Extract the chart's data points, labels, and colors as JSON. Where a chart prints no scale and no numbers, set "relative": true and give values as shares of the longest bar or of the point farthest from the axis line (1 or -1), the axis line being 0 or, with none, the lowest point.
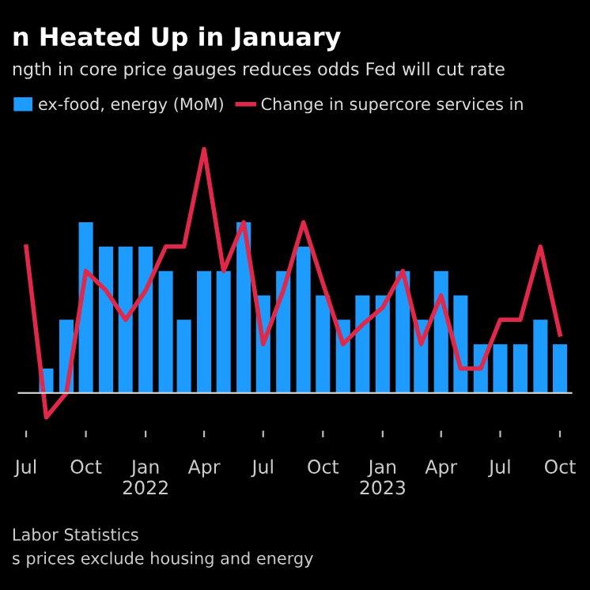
{
  "chart_data": {
    "type": "bar",
    "title": "n Heated Up in January",
    "subtitle": "ngth in core price gauges reduces odds Fed will cut rate",
    "relative": true,
    "legend": "top left",
    "grid": false,
    "x": [
      "2021-07-01",
      "2021-08-01",
      "2021-09-01",
      "2021-10-01",
      "2021-11-01",
      "2021-12-01",
      "2022-01-01",
      "2022-02-01",
      "2022-03-01",
      "2022-04-01",
      "2022-05-01",
      "2022-06-01",
      "2022-07-01",
      "2022-08-01",
      "2022-09-01",
      "2022-10-01",
      "2022-11-01",
      "2022-12-01",
      "2023-01-01",
      "2023-02-01",
      "2023-03-01",
      "2023-04-01",
      "2023-05-01",
      "2023-06-01",
      "2023-07-01",
      "2023-08-01",
      "2023-09-01",
      "2023-10-01"
    ],
    "xlim": [
      "2021-06-18",
      "2023-10-20"
    ],
    "xticks": [
      {
        "value": "2021-07-01",
        "label": "Jul"
      },
      {
        "value": "2021-10-01",
        "label": "Oct"
      },
      {
        "value": "2022-01-01",
        "label": "Jan\n2022"
      },
      {
        "value": "2022-04-01",
        "label": "Apr"
      },
      {
        "value": "2022-07-01",
        "label": "Jul"
      },
      {
        "value": "2022-10-01",
        "label": "Oct"
      },
      {
        "value": "2023-01-01",
        "label": "Jan\n2023"
      },
      {
        "value": "2023-04-01",
        "label": "Apr"
      },
      {
        "value": "2023-07-01",
        "label": "Jul"
      },
      {
        "value": "2023-10-01",
        "label": "Oct"
      }
    ],
    "series": [
      {
        "name": "ex-food, energy (MoM)",
        "color": "#1e9bff",
        "values": [
          null,
          0.1,
          0.3,
          0.7,
          0.6,
          0.6,
          0.6,
          0.5,
          0.3,
          0.5,
          0.5,
          0.7,
          0.4,
          0.5,
          0.6,
          0.4,
          0.3,
          0.4,
          0.4,
          0.5,
          0.3,
          0.5,
          0.4,
          0.2,
          0.2,
          0.2,
          0.3,
          0.2
        ]
      },
      {
        "name": "Change in supercore services in",
        "type": "line",
        "color": "#e0284a",
        "values": [
          0.6,
          -0.1,
          0.0,
          0.5,
          0.42,
          0.3,
          0.42,
          0.6,
          0.6,
          1.0,
          0.5,
          0.7,
          0.2,
          0.42,
          0.7,
          0.45,
          0.2,
          0.28,
          0.35,
          0.5,
          0.2,
          0.4,
          0.1,
          0.1,
          0.3,
          0.3,
          0.6,
          0.24
        ]
      }
    ],
    "annotations": [
      "Labor Statistics",
      "s prices exclude housing and energy"
    ]
  }
}
